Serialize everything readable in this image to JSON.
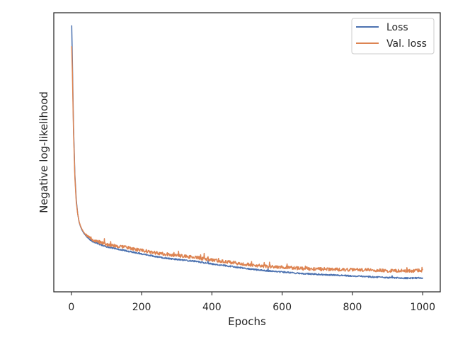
{
  "chart_data": {
    "type": "line",
    "title": "",
    "xlabel": "Epochs",
    "ylabel": "Negative log-likelihood",
    "xlim": [
      -50,
      1050
    ],
    "ylim": [
      0,
      1
    ],
    "xticks": [
      0,
      200,
      400,
      600,
      800,
      1000
    ],
    "xtick_labels": [
      "0",
      "200",
      "400",
      "600",
      "800",
      "1000"
    ],
    "yticks_shown": false,
    "grid": false,
    "legend_position": "upper-right",
    "series": [
      {
        "name": "Loss",
        "color": "#4c72b0",
        "points": [
          [
            1,
            0.955
          ],
          [
            3,
            0.82
          ],
          [
            6,
            0.6
          ],
          [
            10,
            0.42
          ],
          [
            14,
            0.33
          ],
          [
            18,
            0.28
          ],
          [
            22,
            0.25
          ],
          [
            26,
            0.234
          ],
          [
            30,
            0.222
          ],
          [
            35,
            0.211
          ],
          [
            40,
            0.203
          ],
          [
            50,
            0.19
          ],
          [
            60,
            0.181
          ],
          [
            80,
            0.17
          ],
          [
            100,
            0.162
          ],
          [
            130,
            0.154
          ],
          [
            160,
            0.146
          ],
          [
            200,
            0.136
          ],
          [
            250,
            0.124
          ],
          [
            300,
            0.116
          ],
          [
            350,
            0.11
          ],
          [
            400,
            0.1
          ],
          [
            450,
            0.092
          ],
          [
            500,
            0.083
          ],
          [
            550,
            0.076
          ],
          [
            600,
            0.071
          ],
          [
            650,
            0.066
          ],
          [
            700,
            0.063
          ],
          [
            750,
            0.06
          ],
          [
            800,
            0.057
          ],
          [
            850,
            0.054
          ],
          [
            900,
            0.051
          ],
          [
            950,
            0.049
          ],
          [
            1000,
            0.05
          ]
        ]
      },
      {
        "name": "Val. loss",
        "color": "#dd8452",
        "points": [
          [
            1,
            0.88
          ],
          [
            3,
            0.78
          ],
          [
            6,
            0.58
          ],
          [
            10,
            0.41
          ],
          [
            14,
            0.32
          ],
          [
            18,
            0.28
          ],
          [
            22,
            0.252
          ],
          [
            26,
            0.236
          ],
          [
            30,
            0.225
          ],
          [
            35,
            0.214
          ],
          [
            40,
            0.206
          ],
          [
            50,
            0.196
          ],
          [
            60,
            0.188
          ],
          [
            80,
            0.178
          ],
          [
            100,
            0.17
          ],
          [
            130,
            0.164
          ],
          [
            160,
            0.158
          ],
          [
            200,
            0.148
          ],
          [
            250,
            0.138
          ],
          [
            300,
            0.13
          ],
          [
            350,
            0.124
          ],
          [
            400,
            0.114
          ],
          [
            450,
            0.106
          ],
          [
            500,
            0.098
          ],
          [
            550,
            0.092
          ],
          [
            600,
            0.088
          ],
          [
            650,
            0.084
          ],
          [
            700,
            0.082
          ],
          [
            750,
            0.08
          ],
          [
            800,
            0.079
          ],
          [
            850,
            0.078
          ],
          [
            900,
            0.076
          ],
          [
            950,
            0.075
          ],
          [
            1000,
            0.077
          ]
        ]
      }
    ]
  }
}
